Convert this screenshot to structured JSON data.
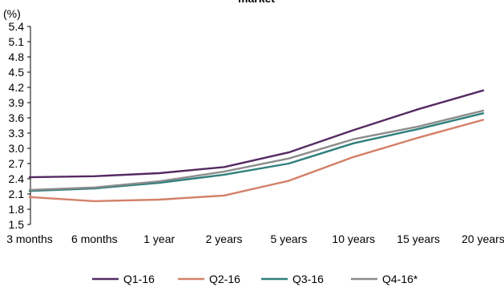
{
  "chart_data": {
    "type": "line",
    "title_fragment": "market",
    "unit_label": "(%)",
    "categories": [
      "3 months",
      "6 months",
      "1 year",
      "2 years",
      "5 years",
      "10 years",
      "15 years",
      "20 years"
    ],
    "yticks": [
      "1.5",
      "1.8",
      "2.1",
      "2.4",
      "2.7",
      "3.0",
      "3.3",
      "3.6",
      "3.9",
      "4.2",
      "4.5",
      "4.8",
      "5.1",
      "5.4"
    ],
    "ylim": [
      1.5,
      5.4
    ],
    "grid": false,
    "legend_position": "bottom",
    "series": [
      {
        "name": "Q1-16",
        "color": "#542a62",
        "values": [
          2.43,
          2.45,
          2.51,
          2.63,
          2.92,
          3.36,
          3.77,
          4.14
        ]
      },
      {
        "name": "Q2-16",
        "color": "#d48068",
        "values": [
          2.04,
          1.96,
          1.99,
          2.07,
          2.36,
          2.83,
          3.21,
          3.56
        ]
      },
      {
        "name": "Q3-16",
        "color": "#2f7f7c",
        "values": [
          2.16,
          2.21,
          2.32,
          2.48,
          2.7,
          3.1,
          3.38,
          3.69
        ]
      },
      {
        "name": "Q4-16*",
        "color": "#8c8c8c",
        "values": [
          2.18,
          2.23,
          2.35,
          2.54,
          2.8,
          3.18,
          3.43,
          3.74
        ]
      }
    ]
  }
}
